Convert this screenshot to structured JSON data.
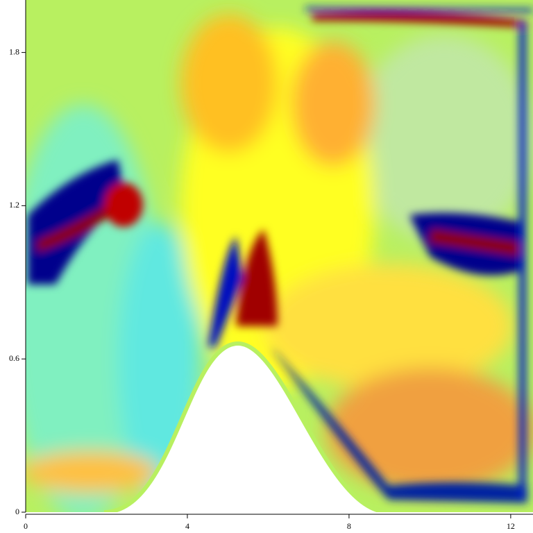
{
  "chart_data": {
    "type": "heatmap",
    "xlim": [
      0,
      12.5
    ],
    "xticks": [
      0,
      4,
      8,
      12
    ],
    "ylim": [
      0,
      2
    ],
    "yticks": [
      0,
      0.6,
      1.2,
      1.8
    ]
  }
}
